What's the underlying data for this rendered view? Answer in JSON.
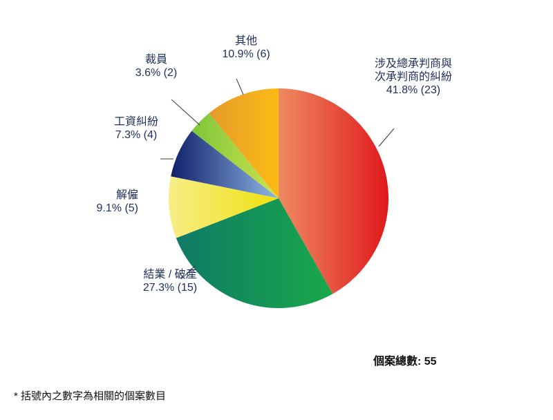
{
  "chart_data": {
    "type": "pie",
    "slices": [
      {
        "label_lines": [
          "涉及總承判商與",
          "次承判商的糾紛"
        ],
        "value_text": "41.8% (23)",
        "percent": 41.8,
        "count": 23,
        "color_start": "#ef8a62",
        "color_end": "#e0191c"
      },
      {
        "label_lines": [
          "結業 / 破產"
        ],
        "value_text": "27.3% (15)",
        "percent": 27.3,
        "count": 15,
        "color_start": "#0f7a66",
        "color_end": "#19a84a"
      },
      {
        "label_lines": [
          "解僱"
        ],
        "value_text": "9.1% (5)",
        "percent": 9.1,
        "count": 5,
        "color_start": "#f7ee88",
        "color_end": "#efe00c"
      },
      {
        "label_lines": [
          "工資糾紛"
        ],
        "value_text": "7.3% (4)",
        "percent": 7.3,
        "count": 4,
        "color_start": "#10206a",
        "color_end": "#8fb6e6"
      },
      {
        "label_lines": [
          "裁員"
        ],
        "value_text": "3.6% (2)",
        "percent": 3.6,
        "count": 2,
        "color_start": "#7cc63a",
        "color_end": "#cfe24c"
      },
      {
        "label_lines": [
          "其他"
        ],
        "value_text": "10.9% (6)",
        "percent": 10.9,
        "count": 6,
        "color_start": "#e59a2a",
        "color_end": "#fbbb14"
      }
    ],
    "total_text": "個案總數: 55",
    "footnote": "* 括號內之數字為相關的個案數目"
  }
}
